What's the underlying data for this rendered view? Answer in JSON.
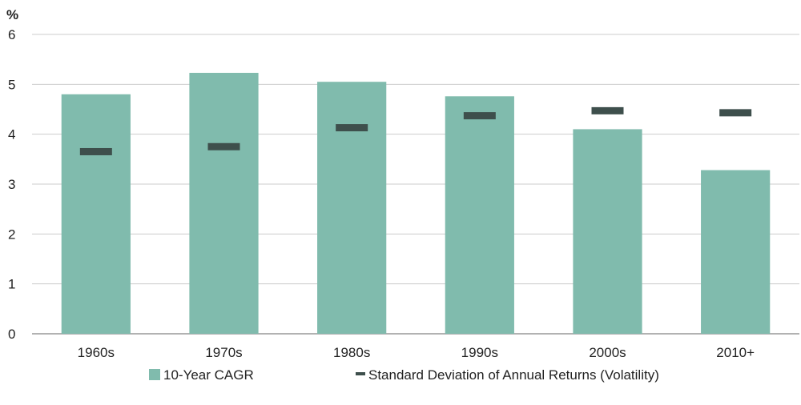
{
  "chart_data": {
    "type": "bar",
    "y_unit_label": "%",
    "ylim": [
      0,
      6
    ],
    "y_ticks": [
      "0",
      "1",
      "2",
      "3",
      "4",
      "5",
      "6"
    ],
    "grid": true,
    "legend_position": "bottom",
    "categories": [
      "1960s",
      "1970s",
      "1980s",
      "1990s",
      "2000s",
      "2010+"
    ],
    "series": [
      {
        "name": "10-Year CAGR",
        "mark": "bar",
        "color": "#80bbad",
        "values": [
          4.8,
          5.23,
          5.05,
          4.76,
          4.1,
          3.28
        ]
      },
      {
        "name": "Standard Deviation of Annual Returns (Volatility)",
        "mark": "dash",
        "color": "#3e4f4c",
        "values": [
          3.65,
          3.75,
          4.13,
          4.37,
          4.47,
          4.43
        ]
      }
    ],
    "colors": {
      "gridline": "#cccccc",
      "axis": "#999999"
    }
  }
}
